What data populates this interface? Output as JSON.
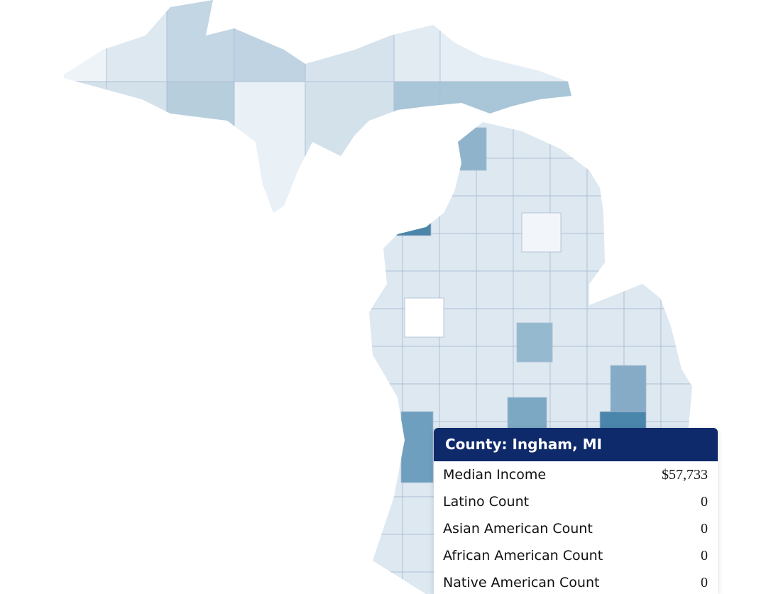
{
  "tooltip": {
    "title": "County: Ingham, MI",
    "rows": [
      [
        "Median Income",
        "$57,733"
      ],
      [
        "Latino Count",
        0
      ],
      [
        "Asian American Count",
        0
      ],
      [
        "African American Count",
        0
      ],
      [
        "Native American Count",
        0
      ]
    ]
  }
}
